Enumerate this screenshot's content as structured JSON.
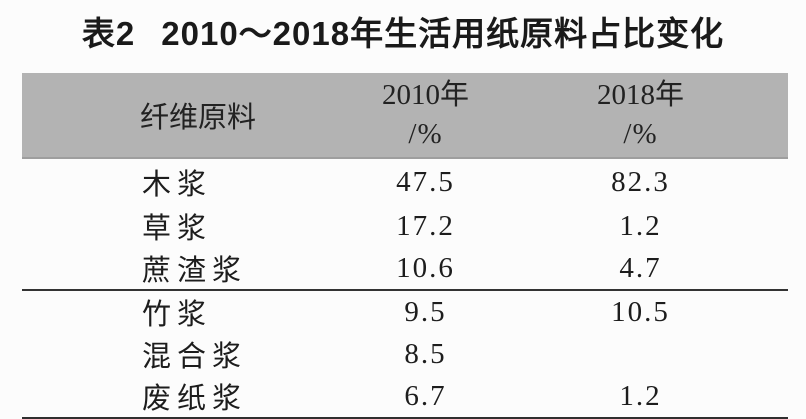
{
  "caption": {
    "label": "表2",
    "text": "2010～2018年生活用纸原料占比变化"
  },
  "header": {
    "material": "纤维原料",
    "col2010": {
      "year": "2010年",
      "unit": "/%"
    },
    "col2018": {
      "year": "2018年",
      "unit": "/%"
    }
  },
  "rows": [
    {
      "material": "木浆",
      "y2010": "47.5",
      "y2018": "82.3"
    },
    {
      "material": "草浆",
      "y2010": "17.2",
      "y2018": "1.2"
    },
    {
      "material": "蔗渣浆",
      "y2010": "10.6",
      "y2018": "4.7"
    },
    {
      "material": "竹浆",
      "y2010": "9.5",
      "y2018": "10.5"
    },
    {
      "material": "混合浆",
      "y2010": "8.5",
      "y2018": ""
    },
    {
      "material": "废纸浆",
      "y2010": "6.7",
      "y2018": "1.2"
    }
  ],
  "colors": {
    "header_bg": "#b3b3b3",
    "rule": "#2f2f2f",
    "text": "#1d1d1d",
    "page_bg": "#fcfcfc"
  },
  "chart_data": {
    "type": "table",
    "title": "表2 2010～2018年生活用纸原料占比变化",
    "columns": [
      "纤维原料",
      "2010年/%",
      "2018年/%"
    ],
    "categories": [
      "木浆",
      "草浆",
      "蔗渣浆",
      "竹浆",
      "混合浆",
      "废纸浆"
    ],
    "series": [
      {
        "name": "2010年/%",
        "values": [
          47.5,
          17.2,
          10.6,
          9.5,
          8.5,
          6.7
        ]
      },
      {
        "name": "2018年/%",
        "values": [
          82.3,
          1.2,
          4.7,
          10.5,
          null,
          1.2
        ]
      }
    ]
  }
}
